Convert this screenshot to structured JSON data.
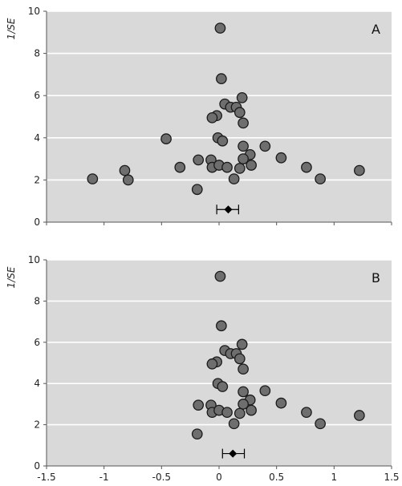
{
  "chart_data": [
    {
      "type": "scatter",
      "panel_label": "A",
      "ylabel": "1/SE",
      "xlim": [
        -1.5,
        1.5
      ],
      "ylim": [
        0,
        10
      ],
      "xticks": [
        "-1.5",
        "-1",
        "-0.5",
        "0",
        "0.5",
        "1",
        "1.5"
      ],
      "yticks": [
        "0",
        "2",
        "4",
        "6",
        "8",
        "10"
      ],
      "show_x_tick_labels": false,
      "grid": "horizontal",
      "colors": {
        "background": "#d9d9d9",
        "grid": "#ffffff",
        "point_fill": "#6e6e6e",
        "point_stroke": "#1a1a1a",
        "summary": "#000000"
      },
      "points": [
        [
          0.01,
          9.2
        ],
        [
          0.02,
          6.8
        ],
        [
          0.2,
          5.9
        ],
        [
          0.05,
          5.6
        ],
        [
          0.1,
          5.45
        ],
        [
          0.15,
          5.45
        ],
        [
          0.18,
          5.2
        ],
        [
          -0.02,
          5.05
        ],
        [
          -0.06,
          4.95
        ],
        [
          0.21,
          4.7
        ],
        [
          -0.46,
          3.95
        ],
        [
          -0.01,
          4.0
        ],
        [
          0.03,
          3.85
        ],
        [
          0.21,
          3.6
        ],
        [
          0.4,
          3.6
        ],
        [
          0.27,
          3.2
        ],
        [
          0.21,
          3.0
        ],
        [
          0.54,
          3.05
        ],
        [
          -0.18,
          2.95
        ],
        [
          -0.07,
          2.95
        ],
        [
          -0.06,
          2.6
        ],
        [
          -0.34,
          2.6
        ],
        [
          0.0,
          2.7
        ],
        [
          0.07,
          2.6
        ],
        [
          0.18,
          2.55
        ],
        [
          0.28,
          2.7
        ],
        [
          0.76,
          2.6
        ],
        [
          -0.82,
          2.45
        ],
        [
          1.22,
          2.45
        ],
        [
          -1.1,
          2.05
        ],
        [
          -0.79,
          2.0
        ],
        [
          0.13,
          2.05
        ],
        [
          0.88,
          2.05
        ],
        [
          -0.19,
          1.55
        ]
      ],
      "summary": {
        "estimate": 0.08,
        "ci": [
          -0.02,
          0.17
        ],
        "y": 0.6
      }
    },
    {
      "type": "scatter",
      "panel_label": "B",
      "ylabel": "1/SE",
      "xlim": [
        -1.5,
        1.5
      ],
      "ylim": [
        0,
        10
      ],
      "xticks": [
        "-1.5",
        "-1",
        "-0.5",
        "0",
        "0.5",
        "1",
        "1.5"
      ],
      "yticks": [
        "0",
        "2",
        "4",
        "6",
        "8",
        "10"
      ],
      "show_x_tick_labels": true,
      "grid": "horizontal",
      "colors": {
        "background": "#d9d9d9",
        "grid": "#ffffff",
        "point_fill": "#6e6e6e",
        "point_stroke": "#1a1a1a",
        "summary": "#000000"
      },
      "points": [
        [
          0.01,
          9.2
        ],
        [
          0.02,
          6.8
        ],
        [
          0.2,
          5.9
        ],
        [
          0.05,
          5.6
        ],
        [
          0.1,
          5.45
        ],
        [
          0.15,
          5.45
        ],
        [
          0.18,
          5.2
        ],
        [
          -0.02,
          5.05
        ],
        [
          -0.06,
          4.95
        ],
        [
          0.21,
          4.7
        ],
        [
          -0.01,
          4.0
        ],
        [
          0.03,
          3.85
        ],
        [
          0.21,
          3.6
        ],
        [
          0.4,
          3.65
        ],
        [
          0.27,
          3.2
        ],
        [
          0.21,
          3.0
        ],
        [
          0.54,
          3.05
        ],
        [
          -0.18,
          2.95
        ],
        [
          -0.07,
          2.95
        ],
        [
          -0.06,
          2.6
        ],
        [
          0.0,
          2.7
        ],
        [
          0.07,
          2.6
        ],
        [
          0.18,
          2.55
        ],
        [
          0.28,
          2.7
        ],
        [
          0.76,
          2.6
        ],
        [
          1.22,
          2.45
        ],
        [
          0.13,
          2.05
        ],
        [
          0.88,
          2.05
        ],
        [
          -0.19,
          1.55
        ]
      ],
      "summary": {
        "estimate": 0.12,
        "ci": [
          0.03,
          0.22
        ],
        "y": 0.6
      }
    }
  ]
}
